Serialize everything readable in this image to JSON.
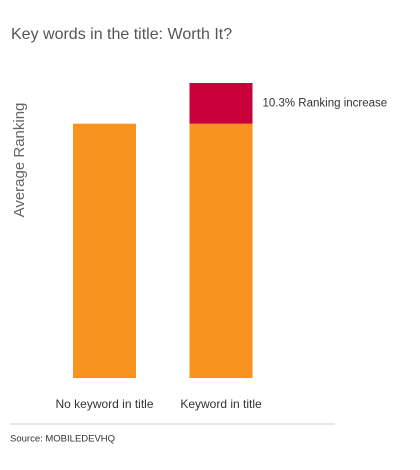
{
  "chart_data": {
    "type": "stacked_bar",
    "title": "Key words in the title: Worth It?",
    "ylabel": "Average Ranking",
    "categories": [
      "No keyword in title",
      "Keyword in title"
    ],
    "series": [
      {
        "color": "#f7931e",
        "values": [
          100,
          100
        ]
      },
      {
        "color": "#c9003a",
        "values": [
          null,
          16
        ]
      }
    ],
    "annotation": "10.3% Ranking increase",
    "source": "Source: MOBILEDEVHQ"
  }
}
